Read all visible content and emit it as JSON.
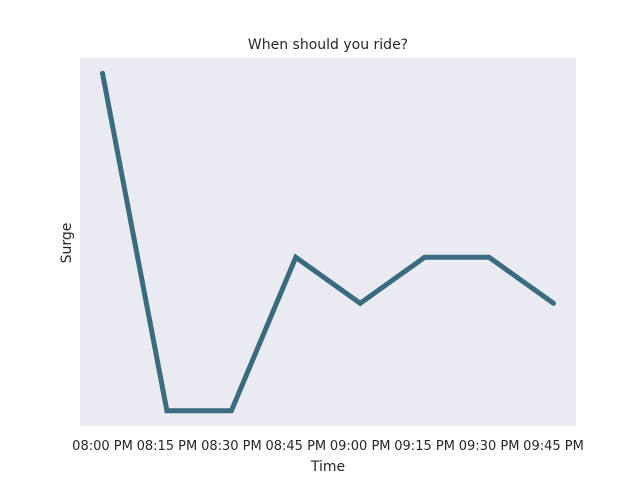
{
  "chart_data": {
    "type": "line",
    "title": "When should you ride?",
    "xlabel": "Time",
    "ylabel": "Surge",
    "categories": [
      "08:00 PM",
      "08:15 PM",
      "08:30 PM",
      "08:45 PM",
      "09:00 PM",
      "09:15 PM",
      "09:30 PM",
      "09:45 PM"
    ],
    "series": [
      {
        "values": [
          2.1,
          1.0,
          1.0,
          1.5,
          1.35,
          1.5,
          1.5,
          1.35
        ]
      }
    ],
    "ylim": [
      0.95,
      2.15
    ],
    "y_ticks_shown": false,
    "grid": false,
    "background_color": "#eaeaf2",
    "line_color": "#3b6b7e"
  }
}
